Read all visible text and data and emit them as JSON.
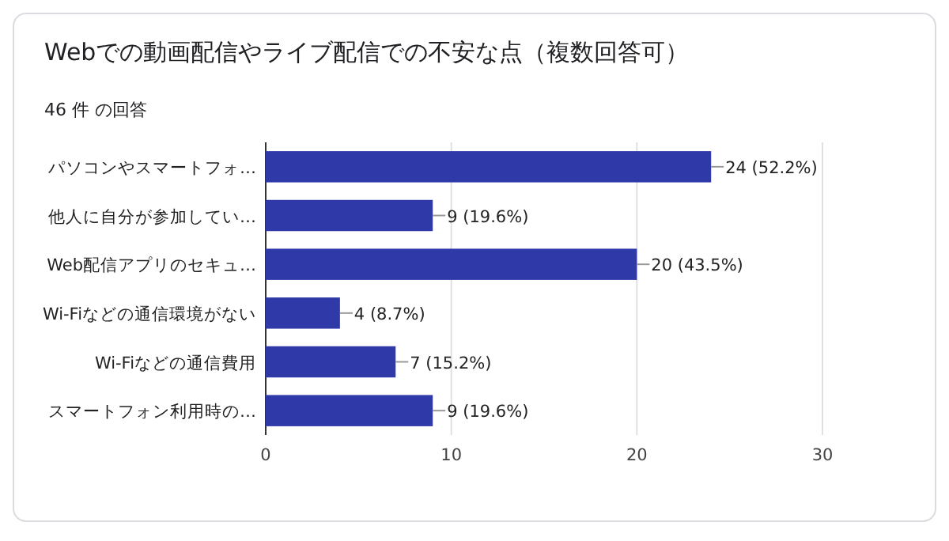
{
  "chart_data": {
    "type": "bar",
    "orientation": "horizontal",
    "title": "Webでの動画配信やライブ配信での不安な点（複数回答可）",
    "subtitle": "46 件 の回答",
    "categories": [
      "パソコンやスマートフォ…",
      "他人に自分が参加してい…",
      "Web配信アプリのセキュ…",
      "Wi-Fiなどの通信環境がない",
      "Wi-Fiなどの通信費用",
      "スマートフォン利用時の…"
    ],
    "values": [
      24,
      9,
      20,
      4,
      7,
      9
    ],
    "value_labels": [
      "24 (52.2%)",
      "9 (19.6%)",
      "20 (43.5%)",
      "4 (8.7%)",
      "7 (15.2%)",
      "9 (19.6%)"
    ],
    "color": "#3039a8",
    "xlim": [
      0,
      30
    ],
    "xticks": [
      0,
      10,
      20,
      30
    ],
    "grid": "x"
  }
}
